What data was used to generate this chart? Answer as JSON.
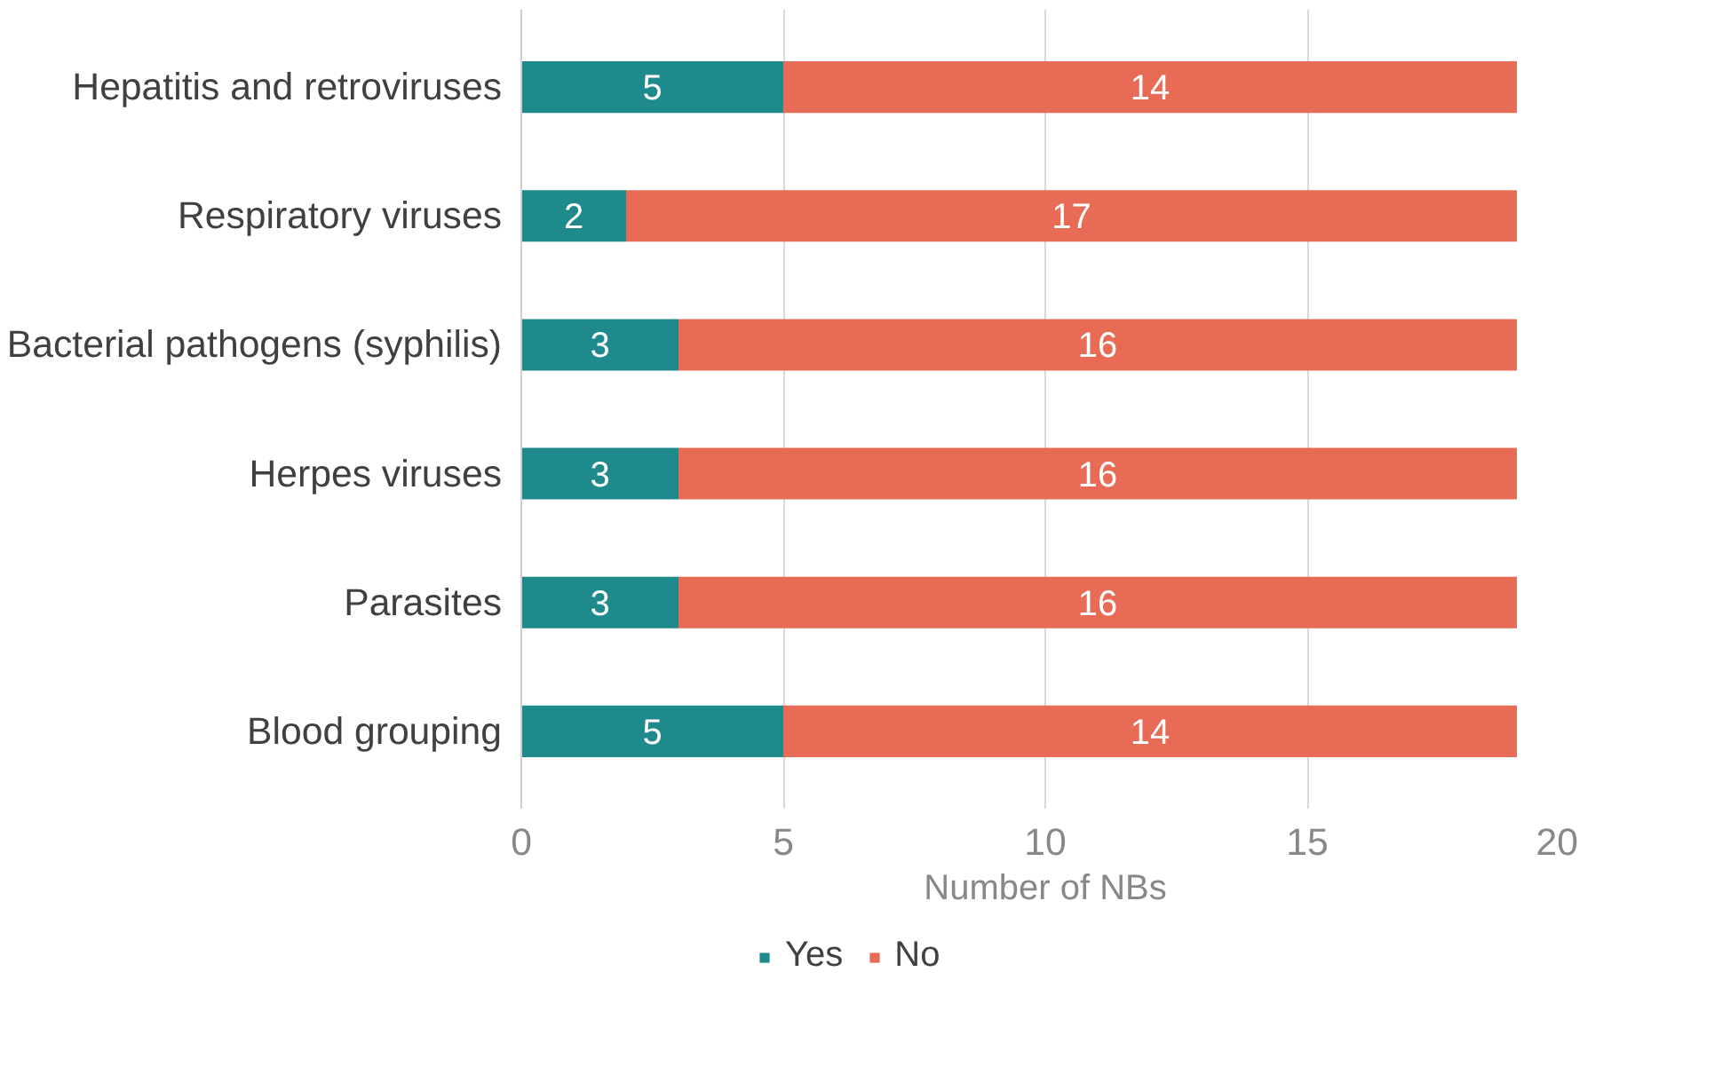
{
  "chart_data": {
    "type": "bar",
    "orientation": "horizontal",
    "stacked": true,
    "xlabel": "Number of NBs",
    "categories": [
      "Hepatitis and retroviruses",
      "Respiratory viruses",
      "Bacterial pathogens (syphilis)",
      "Herpes viruses",
      "Parasites",
      "Blood grouping"
    ],
    "series": [
      {
        "name": "Yes",
        "color": "#1f8a8c",
        "values": [
          5,
          2,
          3,
          3,
          3,
          5
        ]
      },
      {
        "name": "No",
        "color": "#e86c55",
        "values": [
          14,
          17,
          16,
          16,
          16,
          14
        ]
      }
    ],
    "xlim": [
      0,
      20
    ],
    "xticks": [
      0,
      5,
      10,
      15,
      20
    ],
    "grid": "x",
    "legend": "bottom",
    "data_labels": true
  }
}
